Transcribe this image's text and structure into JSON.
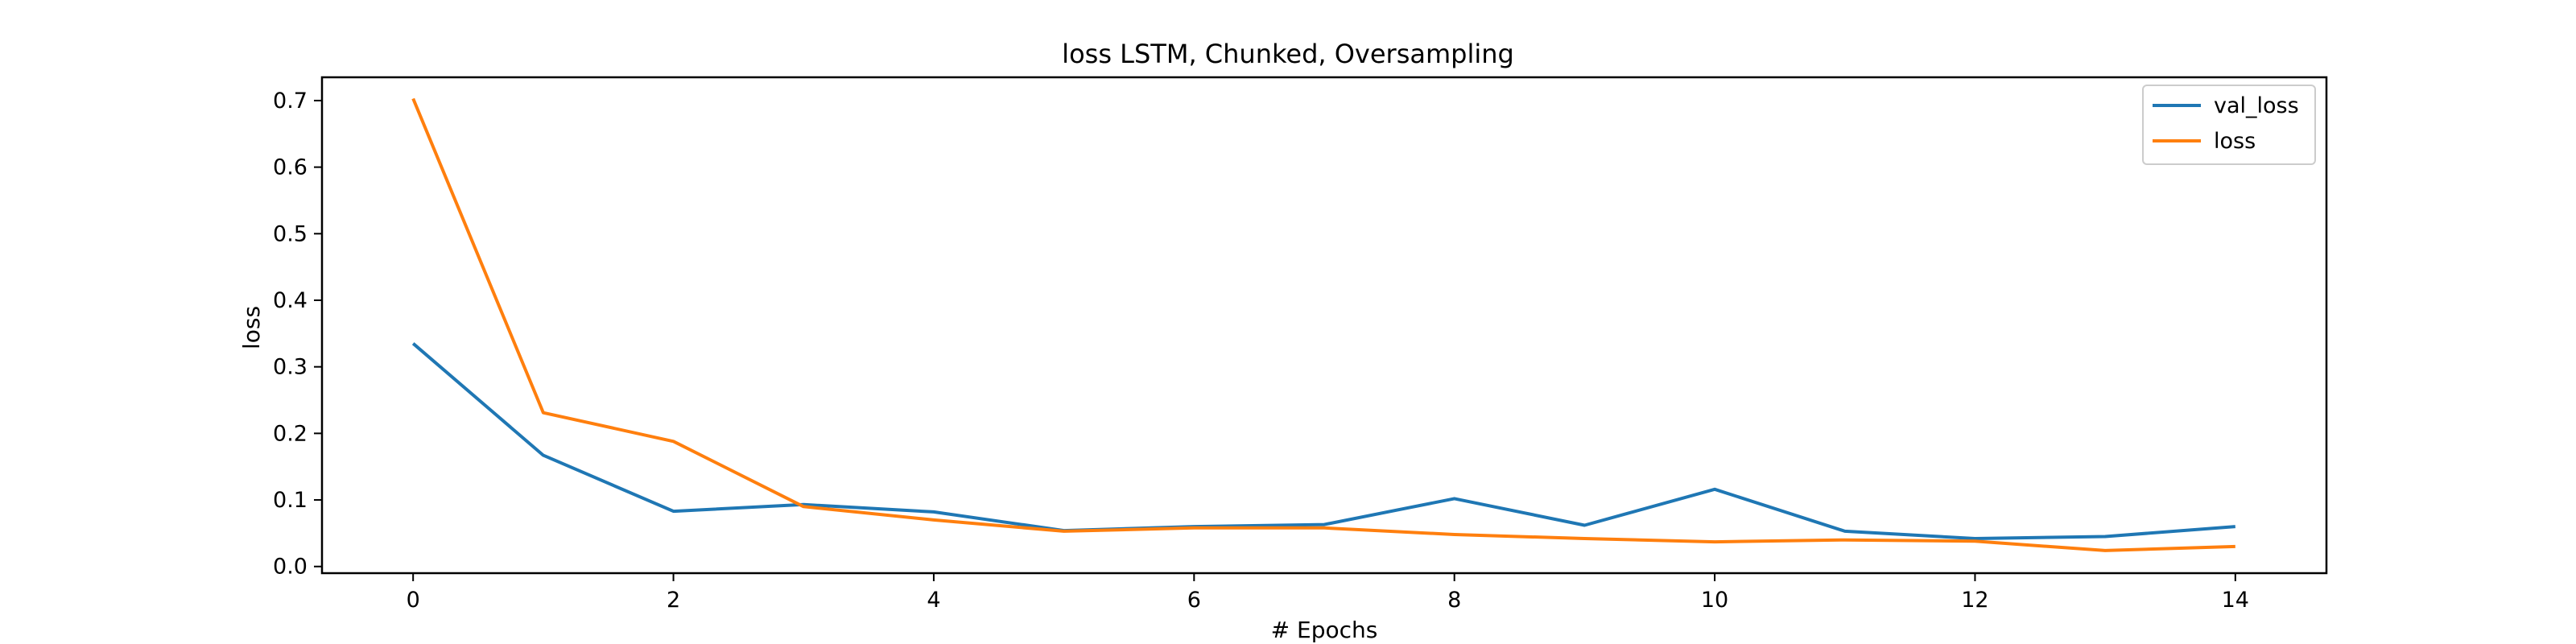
{
  "chart_data": {
    "type": "line",
    "title": "loss LSTM, Chunked, Oversampling",
    "xlabel": "# Epochs",
    "ylabel": "loss",
    "xlim": [
      -0.7,
      14.7
    ],
    "ylim": [
      -0.01,
      0.735
    ],
    "x_ticks": [
      0,
      2,
      4,
      6,
      8,
      10,
      12,
      14
    ],
    "y_ticks": [
      0.0,
      0.1,
      0.2,
      0.3,
      0.4,
      0.5,
      0.6,
      0.7
    ],
    "x_tick_labels": [
      "0",
      "2",
      "4",
      "6",
      "8",
      "10",
      "12",
      "14"
    ],
    "y_tick_labels": [
      "0.0",
      "0.1",
      "0.2",
      "0.3",
      "0.4",
      "0.5",
      "0.6",
      "0.7"
    ],
    "grid": false,
    "legend_position": "top-right",
    "x": [
      0,
      1,
      2,
      3,
      4,
      5,
      6,
      7,
      8,
      9,
      10,
      11,
      12,
      13,
      14
    ],
    "series": [
      {
        "name": "val_loss",
        "color": "#1f77b4",
        "values": [
          0.335,
          0.167,
          0.083,
          0.093,
          0.082,
          0.054,
          0.06,
          0.063,
          0.102,
          0.062,
          0.116,
          0.053,
          0.042,
          0.045,
          0.06
        ]
      },
      {
        "name": "loss",
        "color": "#ff7f0e",
        "values": [
          0.703,
          0.231,
          0.188,
          0.09,
          0.07,
          0.053,
          0.058,
          0.058,
          0.048,
          0.042,
          0.037,
          0.04,
          0.038,
          0.024,
          0.03
        ]
      }
    ]
  }
}
